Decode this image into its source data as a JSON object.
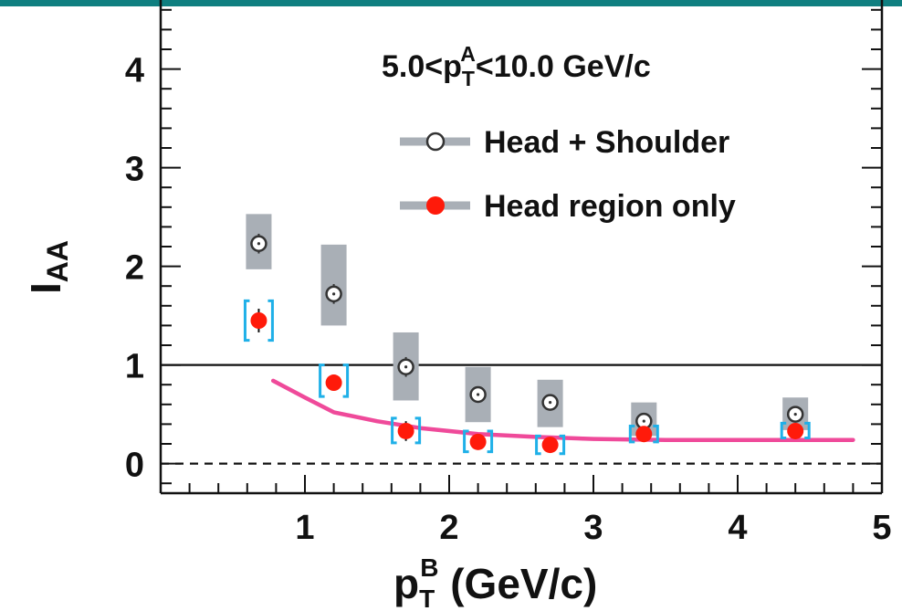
{
  "colors": {
    "top_bar": "#0f7f80",
    "open_marker": "#333333",
    "filled_marker": "#ff1a0a",
    "syst_box_fill": "#a9afb6",
    "syst_bracket": "#1fb0e8",
    "model_curve": "#ef4a9a",
    "axis": "#111111"
  },
  "chart_data": {
    "type": "scatter",
    "annotation": {
      "prefix": "5.0<p",
      "sub": "T",
      "sup": "A",
      "suffix": "<10.0 GeV/c"
    },
    "ylabel": {
      "main": "I",
      "sub": "AA"
    },
    "xlabel": {
      "main": "p",
      "sub": "T",
      "sup": "B",
      "suffix": " (GeV/c)"
    },
    "xlim": [
      0,
      5
    ],
    "ylim": [
      -0.3,
      4.7
    ],
    "xticks": [
      "1",
      "2",
      "3",
      "4",
      "5"
    ],
    "yticks": [
      "0",
      "1",
      "2",
      "3",
      "4"
    ],
    "reference_lines": [
      {
        "y": 1,
        "style": "solid"
      },
      {
        "y": 0,
        "style": "dashed"
      }
    ],
    "series": [
      {
        "name": "Head + Shoulder",
        "marker": "open-circle",
        "x": [
          0.68,
          1.2,
          1.7,
          2.2,
          2.7,
          3.35,
          4.4
        ],
        "y": [
          2.23,
          1.72,
          0.98,
          0.7,
          0.62,
          0.43,
          0.5
        ],
        "yerr": [
          0.1,
          0.1,
          0.1,
          0.08,
          0.08,
          0.06,
          0.06
        ],
        "syst_low": [
          1.97,
          1.4,
          0.64,
          0.42,
          0.37,
          0.28,
          0.34
        ],
        "syst_high": [
          2.53,
          2.22,
          1.33,
          0.98,
          0.85,
          0.62,
          0.67
        ]
      },
      {
        "name": "Head region only",
        "marker": "filled-circle",
        "x": [
          0.68,
          1.2,
          1.7,
          2.2,
          2.7,
          3.35,
          4.4
        ],
        "y": [
          1.45,
          0.82,
          0.33,
          0.22,
          0.19,
          0.3,
          0.33
        ],
        "yerr": [
          0.12,
          0.08,
          0.1,
          0.06,
          0.05,
          0.05,
          0.05
        ],
        "syst_low": [
          1.25,
          0.68,
          0.21,
          0.12,
          0.1,
          0.22,
          0.26
        ],
        "syst_high": [
          1.65,
          1.0,
          0.46,
          0.33,
          0.28,
          0.38,
          0.41
        ]
      }
    ],
    "curve": {
      "x": [
        0.78,
        1.0,
        1.2,
        1.5,
        1.8,
        2.2,
        2.6,
        3.0,
        3.5,
        4.0,
        4.5,
        4.8
      ],
      "y": [
        0.84,
        0.67,
        0.52,
        0.43,
        0.36,
        0.3,
        0.27,
        0.25,
        0.24,
        0.24,
        0.24,
        0.24
      ]
    }
  }
}
